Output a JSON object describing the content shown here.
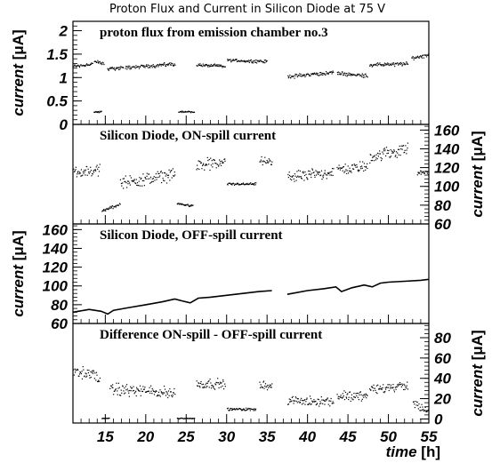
{
  "chart_data": {
    "type": "scatter",
    "title": "Proton Flux and Current in Silicon Diode at 75 V",
    "x_axis": {
      "label_main": "time",
      "label_unit": "[h]",
      "range": [
        11,
        55
      ],
      "ticks": [
        15,
        20,
        25,
        30,
        35,
        40,
        45,
        50,
        55
      ]
    },
    "panels": [
      {
        "title": "proton flux from emission chamber no.3",
        "y_label_main": "current",
        "y_label_unit": "[μA]",
        "y_axis_side": "left",
        "y_range": [
          0,
          2.2
        ],
        "y_ticks": [
          {
            "value": 0,
            "label": "0"
          },
          {
            "value": 0.5,
            "label": "0.5"
          },
          {
            "value": 1,
            "label": "1"
          },
          {
            "value": 1.5,
            "label": "1.5"
          },
          {
            "value": 2,
            "label": "2"
          }
        ],
        "segments": [
          {
            "x": [
              11.0,
              13.4
            ],
            "y": [
              1.25,
              1.3
            ],
            "scatter": 0.05
          },
          {
            "x": [
              13.6,
              14.8
            ],
            "y": [
              1.35,
              1.3
            ],
            "scatter": 0.05
          },
          {
            "x": [
              15.2,
              17.2
            ],
            "y": [
              1.2,
              1.22
            ],
            "scatter": 0.05
          },
          {
            "x": [
              17.4,
              23.6
            ],
            "y": [
              1.22,
              1.3
            ],
            "scatter": 0.05
          },
          {
            "x": [
              26.2,
              29.8
            ],
            "y": [
              1.28,
              1.25
            ],
            "scatter": 0.04
          },
          {
            "x": [
              30.0,
              35.0
            ],
            "y": [
              1.38,
              1.35
            ],
            "scatter": 0.04
          },
          {
            "x": [
              37.5,
              43.2
            ],
            "y": [
              1.03,
              1.12
            ],
            "scatter": 0.05
          },
          {
            "x": [
              43.6,
              47.4
            ],
            "y": [
              1.1,
              1.05
            ],
            "scatter": 0.05
          },
          {
            "x": [
              47.6,
              52.4
            ],
            "y": [
              1.28,
              1.3
            ],
            "scatter": 0.05
          },
          {
            "x": [
              52.8,
              55.0
            ],
            "y": [
              1.42,
              1.5
            ],
            "scatter": 0.05
          },
          {
            "x": [
              13.5,
              14.5
            ],
            "y": [
              0.28,
              0.28
            ],
            "scatter": 0.02
          },
          {
            "x": [
              24.0,
              26.0
            ],
            "y": [
              0.28,
              0.28
            ],
            "scatter": 0.02
          }
        ]
      },
      {
        "title": "Silicon Diode, ON-spill current",
        "y_label_main": "current",
        "y_label_unit": "[μA]",
        "y_axis_side": "right",
        "y_range": [
          60,
          166
        ],
        "y_ticks": [
          {
            "value": 60,
            "label": "60"
          },
          {
            "value": 80,
            "label": "80"
          },
          {
            "value": 100,
            "label": "100"
          },
          {
            "value": 120,
            "label": "120"
          },
          {
            "value": 140,
            "label": "140"
          },
          {
            "value": 160,
            "label": "160"
          }
        ],
        "segments": [
          {
            "x": [
              11.0,
              14.3
            ],
            "y": [
              115,
              118
            ],
            "scatter": 7
          },
          {
            "x": [
              14.5,
              16.8
            ],
            "y": [
              74,
              82
            ],
            "scatter": 2
          },
          {
            "x": [
              16.8,
              23.6
            ],
            "y": [
              104,
              113
            ],
            "scatter": 8
          },
          {
            "x": [
              23.8,
              25.8
            ],
            "y": [
              82,
              80
            ],
            "scatter": 1.5
          },
          {
            "x": [
              26.2,
              29.8
            ],
            "y": [
              122,
              126
            ],
            "scatter": 8
          },
          {
            "x": [
              30.0,
              33.6
            ],
            "y": [
              103,
              103
            ],
            "scatter": 1.5
          },
          {
            "x": [
              34.0,
              35.6
            ],
            "y": [
              128,
              126
            ],
            "scatter": 5
          },
          {
            "x": [
              37.5,
              43.2
            ],
            "y": [
              110,
              116
            ],
            "scatter": 7
          },
          {
            "x": [
              43.6,
              47.4
            ],
            "y": [
              118,
              122
            ],
            "scatter": 7
          },
          {
            "x": [
              47.6,
              52.4
            ],
            "y": [
              132,
              140
            ],
            "scatter": 8
          },
          {
            "x": [
              53.5,
              55.0
            ],
            "y": [
              115,
              115
            ],
            "scatter": 3
          }
        ]
      },
      {
        "title": "Silicon Diode, OFF-spill current",
        "y_label_main": "current",
        "y_label_unit": "[μA]",
        "y_axis_side": "left",
        "y_range": [
          60,
          166
        ],
        "y_ticks": [
          {
            "value": 60,
            "label": "60"
          },
          {
            "value": 80,
            "label": "80"
          },
          {
            "value": 100,
            "label": "100"
          },
          {
            "value": 120,
            "label": "120"
          },
          {
            "value": 140,
            "label": "140"
          },
          {
            "value": 160,
            "label": "160"
          }
        ],
        "line": [
          [
            11.0,
            72
          ],
          [
            13.0,
            75
          ],
          [
            14.5,
            73
          ],
          [
            15.3,
            70
          ],
          [
            16.0,
            74
          ],
          [
            18.0,
            77
          ],
          [
            20.0,
            80
          ],
          [
            22.0,
            83
          ],
          [
            23.6,
            86
          ],
          [
            24.5,
            84
          ],
          [
            25.5,
            82
          ],
          [
            26.5,
            87
          ],
          [
            28.0,
            88
          ],
          [
            30.0,
            90
          ],
          [
            32.0,
            92
          ],
          [
            34.0,
            94
          ],
          [
            35.6,
            95
          ],
          [
            37.5,
            91
          ],
          [
            40.0,
            95
          ],
          [
            42.0,
            97
          ],
          [
            43.5,
            99
          ],
          [
            44.2,
            94
          ],
          [
            45.5,
            98
          ],
          [
            47.0,
            101
          ],
          [
            48.0,
            99
          ],
          [
            49.0,
            103
          ],
          [
            50.0,
            104
          ],
          [
            52.0,
            105
          ],
          [
            54.0,
            106
          ],
          [
            55.0,
            107
          ]
        ],
        "gaps": [
          [
            35.6,
            37.5
          ]
        ]
      },
      {
        "title": "Difference ON-spill - OFF-spill current",
        "y_label_main": "current",
        "y_label_unit": "[μA]",
        "y_axis_side": "right",
        "y_range": [
          -4,
          94
        ],
        "y_ticks": [
          {
            "value": 0,
            "label": "0"
          },
          {
            "value": 20,
            "label": "20"
          },
          {
            "value": 40,
            "label": "40"
          },
          {
            "value": 60,
            "label": "60"
          },
          {
            "value": 80,
            "label": "80"
          }
        ],
        "segments": [
          {
            "x": [
              11.0,
              14.3
            ],
            "y": [
              48,
              42
            ],
            "scatter": 7
          },
          {
            "x": [
              15.5,
              23.6
            ],
            "y": [
              30,
              26
            ],
            "scatter": 7
          },
          {
            "x": [
              26.2,
              29.8
            ],
            "y": [
              35,
              35
            ],
            "scatter": 6
          },
          {
            "x": [
              30.0,
              33.6
            ],
            "y": [
              10,
              10
            ],
            "scatter": 1.5
          },
          {
            "x": [
              34.0,
              35.6
            ],
            "y": [
              35,
              32
            ],
            "scatter": 5
          },
          {
            "x": [
              37.5,
              43.2
            ],
            "y": [
              18,
              18
            ],
            "scatter": 6
          },
          {
            "x": [
              43.6,
              47.4
            ],
            "y": [
              23,
              23
            ],
            "scatter": 6
          },
          {
            "x": [
              47.6,
              52.4
            ],
            "y": [
              30,
              33
            ],
            "scatter": 6
          },
          {
            "x": [
              53.0,
              55.0
            ],
            "y": [
              15,
              8
            ],
            "scatter": 5
          },
          {
            "x": [
              14.5,
              15.5
            ],
            "y": [
              1,
              1
            ],
            "scatter": 0.5
          },
          {
            "x": [
              23.8,
              26.0
            ],
            "y": [
              1,
              1
            ],
            "scatter": 0.5
          }
        ]
      }
    ]
  }
}
